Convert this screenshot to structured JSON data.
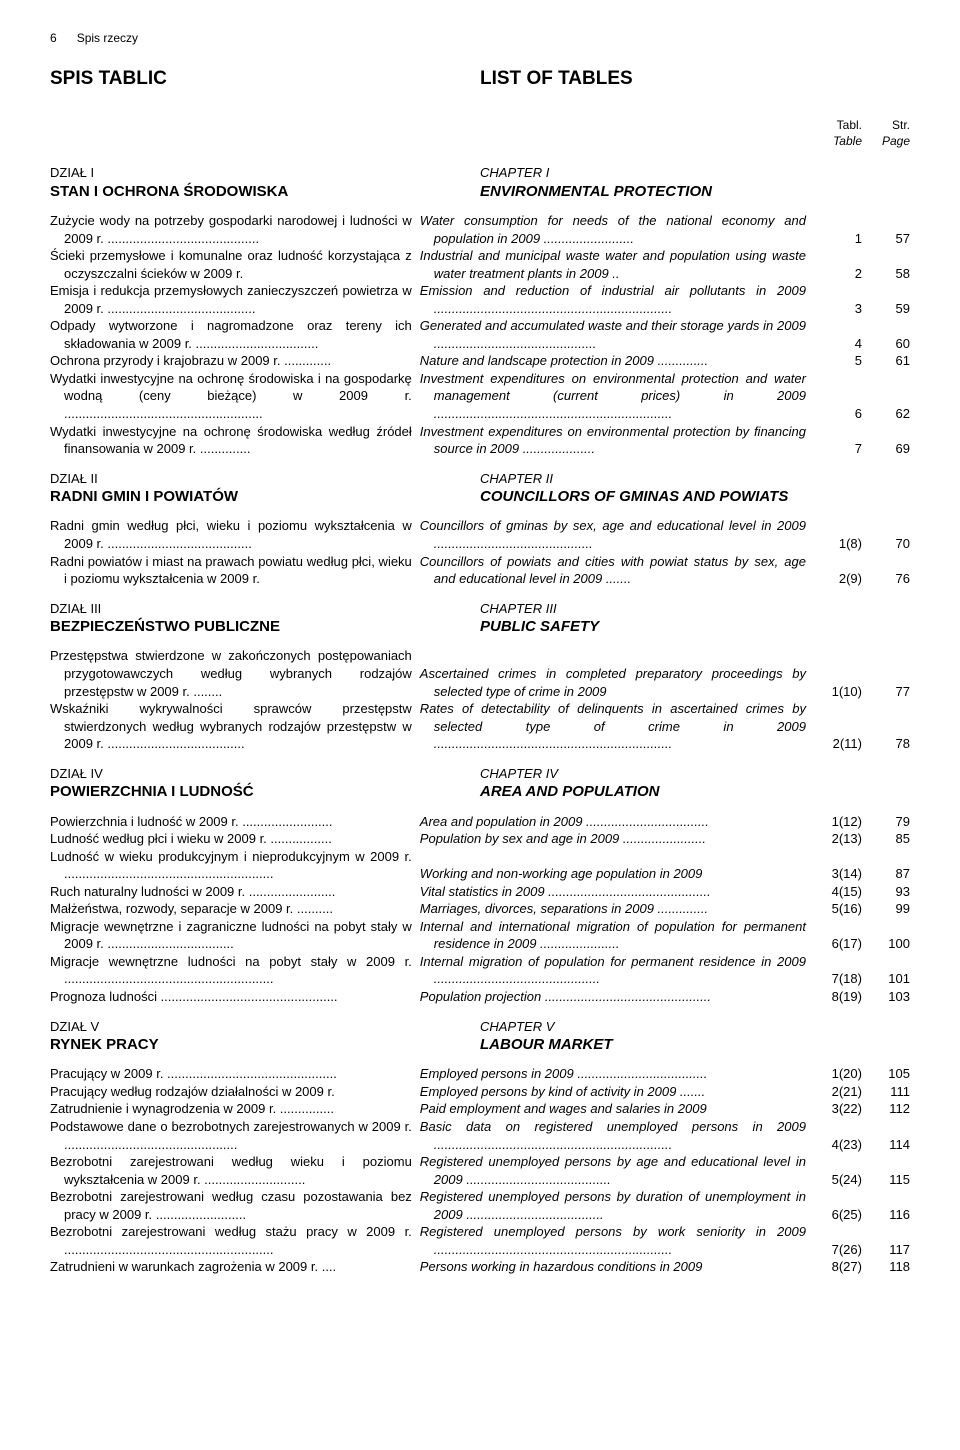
{
  "pageNumber": "6",
  "headerText": "Spis rzeczy",
  "mainTitleLeft": "SPIS TABLIC",
  "mainTitleRight": "LIST OF TABLES",
  "tablHeader": "Tabl.",
  "tableHeader": "Table",
  "strHeader": "Str.",
  "pageHeader": "Page",
  "sections": [
    {
      "chapterPl": "DZIAŁ I",
      "chapterEn": "CHAPTER I",
      "titlePl": "STAN I OCHRONA ŚRODOWISKA",
      "titleEn": "ENVIRONMENTAL PROTECTION",
      "entries": [
        {
          "pl": "Zużycie wody na potrzeby gospodarki narodowej i ludności w 2009 r. ..........................................",
          "en": "Water consumption for needs of the national economy and population in 2009 .........................",
          "tabl": "1",
          "page": "57"
        },
        {
          "pl": "Ścieki przemysłowe i komunalne oraz ludność korzystająca z oczyszczalni ścieków w 2009 r.",
          "en": "Industrial and municipal waste water and population using waste water treatment plants in 2009 ..",
          "tabl": "2",
          "page": "58"
        },
        {
          "pl": "Emisja i redukcja przemysłowych zanieczyszczeń powietrza w 2009 r. .........................................",
          "en": "Emission and reduction of industrial air pollutants in 2009 ..................................................................",
          "tabl": "3",
          "page": "59"
        },
        {
          "pl": "Odpady wytworzone i nagromadzone oraz tereny ich składowania w 2009 r. ..................................",
          "en": "Generated and accumulated waste and their storage yards in 2009 .............................................",
          "tabl": "4",
          "page": "60"
        },
        {
          "pl": "Ochrona przyrody i krajobrazu w 2009 r. .............",
          "en": "Nature and landscape protection in 2009 ..............",
          "tabl": "5",
          "page": "61"
        },
        {
          "pl": "Wydatki inwestycyjne na ochronę środowiska i na gospodarkę wodną (ceny bieżące) w 2009 r. .......................................................",
          "en": "Investment expenditures on environmental protection and water management (current prices) in 2009 ..................................................................",
          "tabl": "6",
          "page": "62"
        },
        {
          "pl": "Wydatki inwestycyjne na ochronę środowiska według źródeł finansowania w 2009 r. ..............",
          "en": "Investment expenditures on environmental protection by financing source in 2009 ....................",
          "tabl": "7",
          "page": "69"
        }
      ]
    },
    {
      "chapterPl": "DZIAŁ II",
      "chapterEn": "CHAPTER II",
      "titlePl": "RADNI GMIN I POWIATÓW",
      "titleEn": "COUNCILLORS OF GMINAS AND POWIATS",
      "entries": [
        {
          "pl": "Radni gmin według płci, wieku i poziomu wykształcenia w 2009 r. ........................................",
          "en": "Councillors of gminas by sex, age and educational level in 2009 ............................................",
          "tabl": "1(8)",
          "page": "70"
        },
        {
          "pl": "Radni powiatów i miast na prawach powiatu według płci, wieku i poziomu wykształcenia w 2009 r.",
          "en": "Councillors of powiats and cities with powiat status by sex, age and educational level in 2009 .......",
          "tabl": "2(9)",
          "page": "76"
        }
      ]
    },
    {
      "chapterPl": "DZIAŁ III",
      "chapterEn": "CHAPTER III",
      "titlePl": "BEZPIECZEŃSTWO PUBLICZNE",
      "titleEn": "PUBLIC SAFETY",
      "entries": [
        {
          "pl": "Przestępstwa stwierdzone w zakończonych postępowaniach przygotowawczych według wybranych rodzajów przestępstw w 2009 r. ........",
          "en": "Ascertained crimes in completed preparatory proceedings by selected type of crime in 2009",
          "tabl": "1(10)",
          "page": "77"
        },
        {
          "pl": "Wskaźniki wykrywalności sprawców przestępstw stwierdzonych według wybranych rodzajów przestępstw w 2009 r. ......................................",
          "en": "Rates of detectability of delinquents in ascertained crimes by selected type of crime in 2009 ..................................................................",
          "tabl": "2(11)",
          "page": "78"
        }
      ]
    },
    {
      "chapterPl": "DZIAŁ IV",
      "chapterEn": "CHAPTER IV",
      "titlePl": "POWIERZCHNIA I LUDNOŚĆ",
      "titleEn": "AREA AND POPULATION",
      "entries": [
        {
          "pl": "Powierzchnia i ludność w 2009 r. .........................",
          "en": "Area and population in 2009 ..................................",
          "tabl": "1(12)",
          "page": "79"
        },
        {
          "pl": "Ludność według płci i wieku w 2009 r. .................",
          "en": "Population by sex and age in 2009 .......................",
          "tabl": "2(13)",
          "page": "85"
        },
        {
          "pl": "Ludność w wieku produkcyjnym i nieprodukcyjnym w 2009 r. ..........................................................",
          "en": "Working and non-working age population in 2009",
          "tabl": "3(14)",
          "page": "87"
        },
        {
          "pl": "Ruch naturalny ludności w 2009 r. ........................",
          "en": "Vital statistics in 2009 .............................................",
          "tabl": "4(15)",
          "page": "93"
        },
        {
          "pl": "Małżeństwa, rozwody, separacje w 2009 r. ..........",
          "en": "Marriages, divorces, separations in 2009 ..............",
          "tabl": "5(16)",
          "page": "99"
        },
        {
          "pl": "Migracje wewnętrzne i zagraniczne ludności na pobyt stały w 2009 r. ...................................",
          "en": "Internal and international migration of population for permanent residence in 2009 ......................",
          "tabl": "6(17)",
          "page": "100"
        },
        {
          "pl": "Migracje wewnętrzne ludności na pobyt stały w 2009 r. ..........................................................",
          "en": "Internal migration of population for permanent residence in 2009 ..............................................",
          "tabl": "7(18)",
          "page": "101"
        },
        {
          "pl": "Prognoza ludności .................................................",
          "en": "Population projection ..............................................",
          "tabl": "8(19)",
          "page": "103"
        }
      ]
    },
    {
      "chapterPl": "DZIAŁ V",
      "chapterEn": "CHAPTER V",
      "titlePl": "RYNEK PRACY",
      "titleEn": "LABOUR MARKET",
      "entries": [
        {
          "pl": "Pracujący w 2009 r. ...............................................",
          "en": "Employed persons in 2009 ....................................",
          "tabl": "1(20)",
          "page": "105"
        },
        {
          "pl": "Pracujący według rodzajów działalności w 2009 r.",
          "en": "Employed persons by kind of activity in 2009 .......",
          "tabl": "2(21)",
          "page": "111"
        },
        {
          "pl": "Zatrudnienie i wynagrodzenia w 2009 r. ...............",
          "en": "Paid employment and wages and salaries in 2009",
          "tabl": "3(22)",
          "page": "112"
        },
        {
          "pl": "Podstawowe dane o bezrobotnych zarejestrowanych w 2009 r. ................................................",
          "en": "Basic data on registered unemployed persons in 2009 ..................................................................",
          "tabl": "4(23)",
          "page": "114"
        },
        {
          "pl": "Bezrobotni zarejestrowani według wieku i poziomu wykształcenia w 2009 r. ............................",
          "en": "Registered unemployed persons by age and educational level in 2009 ........................................",
          "tabl": "5(24)",
          "page": "115"
        },
        {
          "pl": "Bezrobotni zarejestrowani według czasu pozostawania bez pracy w 2009 r. .........................",
          "en": "Registered unemployed persons by duration of unemployment in 2009 ......................................",
          "tabl": "6(25)",
          "page": "116"
        },
        {
          "pl": "Bezrobotni zarejestrowani według stażu pracy w 2009 r. ..........................................................",
          "en": "Registered unemployed persons by work seniority in 2009 ..................................................................",
          "tabl": "7(26)",
          "page": "117"
        },
        {
          "pl": "Zatrudnieni w warunkach zagrożenia w 2009 r. ....",
          "en": "Persons working in hazardous conditions in 2009",
          "tabl": "8(27)",
          "page": "118"
        }
      ]
    }
  ]
}
